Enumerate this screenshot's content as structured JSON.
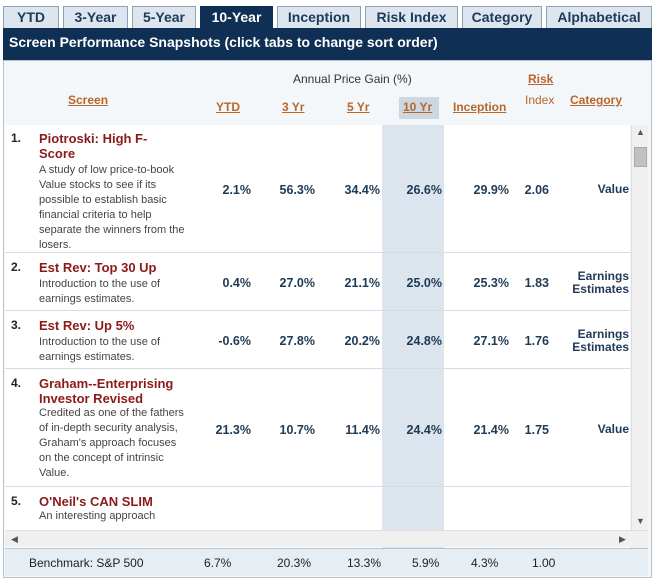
{
  "tabs": [
    {
      "label": "YTD",
      "active": false
    },
    {
      "label": "3-Year",
      "active": false
    },
    {
      "label": "5-Year",
      "active": false
    },
    {
      "label": "10-Year",
      "active": true
    },
    {
      "label": "Inception",
      "active": false
    },
    {
      "label": "Risk Index",
      "active": false
    },
    {
      "label": "Category",
      "active": false
    },
    {
      "label": "Alphabetical",
      "active": false
    }
  ],
  "title": "Screen Performance Snapshots (click tabs to change sort order)",
  "header": {
    "screen": "Screen",
    "annual_gain": "Annual Price Gain (%)",
    "ytd": "YTD",
    "yr3": "3 Yr",
    "yr5": "5 Yr",
    "yr10": "10 Yr",
    "inception": "Inception",
    "risk": "Risk",
    "index": "Index",
    "category": "Category"
  },
  "rows": [
    {
      "rank": "1.",
      "name": "Piotroski: High F-Score",
      "desc": "A study of low price-to-book Value stocks to see if its possible to establish basic financial criteria to help separate the winners from the losers.",
      "ytd": "2.1%",
      "yr3": "56.3%",
      "yr5": "34.4%",
      "yr10": "26.6%",
      "inception": "29.9%",
      "risk": "2.06",
      "category": "Value"
    },
    {
      "rank": "2.",
      "name": "Est Rev: Top 30 Up",
      "desc": "Introduction to the use of earnings estimates.",
      "ytd": "0.4%",
      "yr3": "27.0%",
      "yr5": "21.1%",
      "yr10": "25.0%",
      "inception": "25.3%",
      "risk": "1.83",
      "category": "Earnings Estimates"
    },
    {
      "rank": "3.",
      "name": "Est Rev: Up 5%",
      "desc": "Introduction to the use of earnings estimates.",
      "ytd": "-0.6%",
      "yr3": "27.8%",
      "yr5": "20.2%",
      "yr10": "24.8%",
      "inception": "27.1%",
      "risk": "1.76",
      "category": "Earnings Estimates"
    },
    {
      "rank": "4.",
      "name": "Graham--Enterprising Investor Revised",
      "desc": "Credited as one of the fathers of in-depth security analysis, Graham's approach focuses on the concept of intrinsic Value.",
      "ytd": "21.3%",
      "yr3": "10.7%",
      "yr5": "11.4%",
      "yr10": "24.4%",
      "inception": "21.4%",
      "risk": "1.75",
      "category": "Value"
    },
    {
      "rank": "5.",
      "name": "O'Neil's CAN SLIM",
      "desc": "An interesting approach",
      "ytd": "",
      "yr3": "",
      "yr5": "",
      "yr10": "",
      "inception": "",
      "risk": "",
      "category": ""
    }
  ],
  "benchmark": {
    "label": "Benchmark: S&P 500",
    "ytd": "6.7%",
    "yr3": "20.3%",
    "yr5": "13.3%",
    "yr10": "5.9%",
    "inception": "4.3%",
    "risk": "1.00"
  },
  "icons": {
    "scroll_up": "scroll-up-arrow-icon",
    "scroll_down": "scroll-down-arrow-icon",
    "scroll_left": "scroll-left-arrow-icon",
    "scroll_right": "scroll-right-arrow-icon"
  },
  "colors": {
    "navy": "#0f2f54",
    "tab_bg": "#dde6ee",
    "link_orange": "#b8672b",
    "screen_name_red": "#8b1a1a",
    "highlight_col": "#dce5ee"
  }
}
